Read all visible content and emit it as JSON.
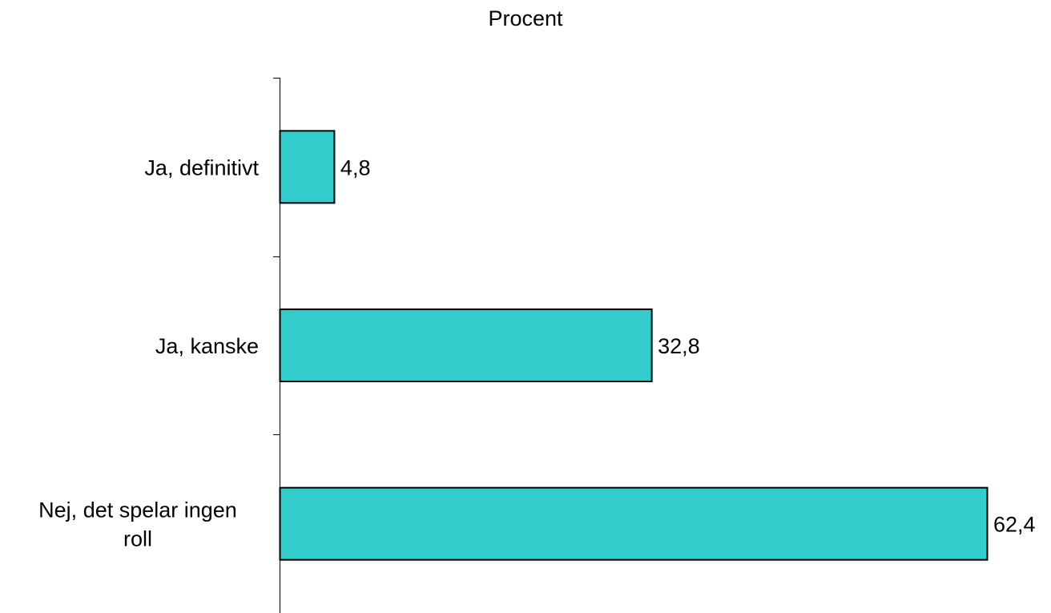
{
  "chart_data": {
    "type": "bar",
    "orientation": "horizontal",
    "title": "Procent",
    "categories": [
      [
        "Ja, definitivt"
      ],
      [
        "Ja, kanske"
      ],
      [
        "Nej, det spelar ingen",
        "roll"
      ]
    ],
    "values": [
      4.8,
      32.8,
      62.4
    ],
    "value_labels": [
      "4,8",
      "32,8",
      "62,4"
    ],
    "xlabel": "",
    "ylabel": "",
    "xlim": [
      0,
      62.4
    ],
    "grid": false,
    "legend": "none",
    "colors": {
      "bar_fill": "#33CCCC",
      "bar_stroke": "#000000",
      "axis": "#000000"
    }
  }
}
